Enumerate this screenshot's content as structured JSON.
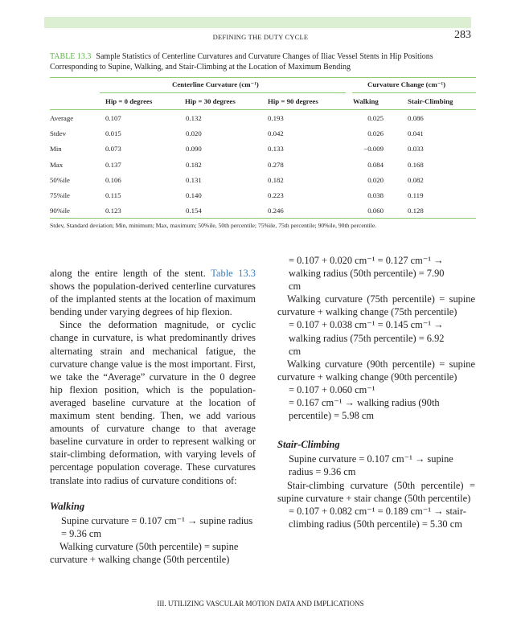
{
  "header": {
    "running_title": "DEFINING THE DUTY CYCLE",
    "page_number": "283"
  },
  "table": {
    "label": "TABLE 13.3",
    "caption": "Sample Statistics of Centerline Curvatures and Curvature Changes of Iliac Vessel Stents in Hip Positions Corresponding to Supine, Walking, and Stair-Climbing at the Location of Maximum Bending",
    "group_headers": [
      "Centerline Curvature (cm⁻¹)",
      "Curvature Change (cm⁻¹)"
    ],
    "columns": [
      "Hip = 0 degrees",
      "Hip = 30 degrees",
      "Hip = 90 degrees",
      "Walking",
      "Stair-Climbing"
    ],
    "rows": [
      {
        "label": "Average",
        "values": [
          "0.107",
          "0.132",
          "0.193",
          "0.025",
          "0.086"
        ]
      },
      {
        "label": "Stdev",
        "values": [
          "0.015",
          "0.020",
          "0.042",
          "0.026",
          "0.041"
        ]
      },
      {
        "label": "Min",
        "values": [
          "0.073",
          "0.090",
          "0.133",
          "−0.009",
          "0.033"
        ]
      },
      {
        "label": "Max",
        "values": [
          "0.137",
          "0.182",
          "0.278",
          "0.084",
          "0.168"
        ]
      },
      {
        "label": "50%ile",
        "values": [
          "0.106",
          "0.131",
          "0.182",
          "0.020",
          "0.082"
        ]
      },
      {
        "label": "75%ile",
        "values": [
          "0.115",
          "0.140",
          "0.223",
          "0.038",
          "0.119"
        ]
      },
      {
        "label": "90%ile",
        "values": [
          "0.123",
          "0.154",
          "0.246",
          "0.060",
          "0.128"
        ]
      }
    ],
    "footnote": "Stdev, Standard deviation; Min, minimum; Max, maximum; 50%ile, 50th percentile; 75%ile, 75th percentile; 90%ile, 90th percentile."
  },
  "body": {
    "p1_a": "along the entire length of the stent. ",
    "p1_link": "Table 13.3",
    "p1_b": " shows the population-derived centerline curvatures of the implanted stents at the location of maximum bending under varying degrees of hip flexion.",
    "p2": "Since the deformation magnitude, or cyclic change in curvature, is what predominantly drives alternating strain and mechanical fatigue, the curvature change value is the most important. First, we take the “Average” curvature in the 0 degree hip flexion position, which is the population-averaged baseline curvature at the location of maximum stent bending. Then, we add various amounts of curvature change to that average baseline curvature in order to represent walking or stair-climbing deformation, with varying levels of percentage population coverage. These curvatures translate into radius of curvature conditions of:",
    "walking_heading": "Walking",
    "w1": "Supine curvature = 0.107 cm⁻¹ → supine radius = 9.36 cm",
    "w2": "Walking curvature (50th percentile) = supine curvature + walking change (50th percentile)",
    "w3": "= 0.107 + 0.020 cm⁻¹ = 0.127 cm⁻¹ → walking radius (50th percentile) = 7.90 cm",
    "w4": "Walking curvature (75th percentile) = supine curvature + walking change (75th percentile)",
    "w5": "= 0.107 + 0.038 cm⁻¹ = 0.145 cm⁻¹ → walking radius (75th percentile) = 6.92 cm",
    "w6": "Walking curvature (90th percentile) = supine curvature + walking change (90th percentile)",
    "w7": "= 0.107 + 0.060 cm⁻¹",
    "w8": "= 0.167 cm⁻¹ → walking radius (90th percentile) = 5.98 cm",
    "stair_heading": "Stair-Climbing",
    "s1": "Supine curvature = 0.107 cm⁻¹ → supine radius = 9.36 cm",
    "s2": "Stair-climbing curvature (50th percentile) = supine curvature + stair change (50th percentile)",
    "s3": "= 0.107 + 0.082 cm⁻¹ = 0.189 cm⁻¹ → stair-climbing radius (50th percentile) = 5.30 cm"
  },
  "footer": {
    "text": "III. UTILIZING VASCULAR MOTION DATA AND IMPLICATIONS"
  },
  "colors": {
    "accent": "#5fb548",
    "rule": "#8dc96f",
    "band": "#dcefd2",
    "link": "#3c7fc1"
  }
}
